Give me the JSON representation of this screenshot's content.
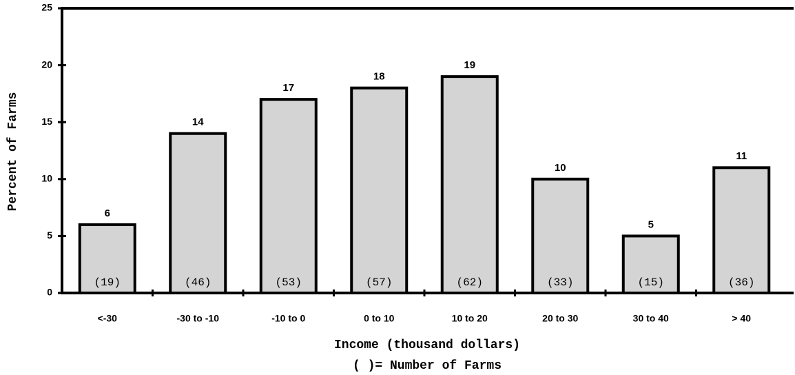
{
  "chart_data": {
    "type": "bar",
    "x_label": "Income (thousand dollars)",
    "note": "( )= Number of Farms",
    "y_label": "Percent of Farms",
    "categories": [
      "<-30",
      "-30 to -10",
      "-10 to 0",
      "0 to 10",
      "10 to 20",
      "20 to 30",
      "30 to 40",
      "> 40"
    ],
    "values": [
      6,
      14,
      17,
      18,
      19,
      10,
      5,
      11
    ],
    "count_labels": [
      "(19)",
      "(46)",
      "(53)",
      "(57)",
      "(62)",
      "(33)",
      "(15)",
      "(36)"
    ],
    "color": "#d4d4d4",
    "ylim": [
      0,
      25
    ],
    "yticks": [
      0,
      5,
      10,
      15,
      20,
      25
    ]
  }
}
